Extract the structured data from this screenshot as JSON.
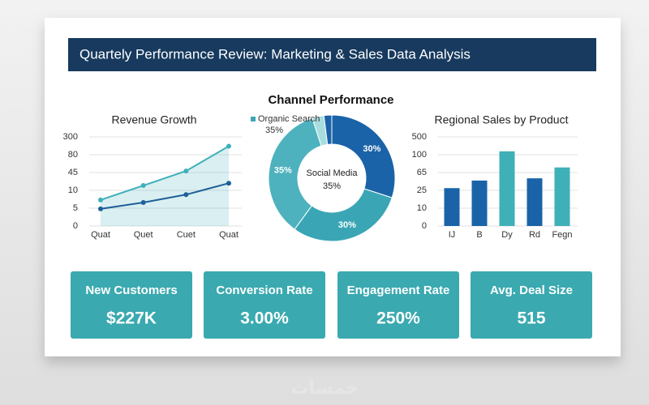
{
  "header": {
    "title": "Quartely Performance Review: Marketing & Sales Data Analysis"
  },
  "chart_data": [
    {
      "type": "line",
      "title": "Revenue Growth",
      "categories": [
        "Quat",
        "Quet",
        "Cuet",
        "Quat"
      ],
      "series": [
        {
          "color": "#3fb0b8",
          "values": [
            7.3,
            19.5,
            48,
            185
          ]
        },
        {
          "color": "#1f5f99",
          "values": [
            4.8,
            6.6,
            8.8,
            24
          ]
        }
      ],
      "ylim": [
        0,
        300
      ],
      "yticks": [
        0,
        5,
        10,
        45,
        80,
        300
      ],
      "grid": true
    },
    {
      "type": "donut",
      "title": "Channel Performance",
      "values": [
        30,
        30,
        35,
        3,
        2
      ],
      "value_labels": [
        "30%",
        "30%",
        "35%",
        null,
        null
      ],
      "colors": [
        "#1a63a8",
        "#3aa6b5",
        "#4eb2be",
        "#a8dde0",
        "#1a63a8"
      ],
      "legend": {
        "label": "Organic Search",
        "value_label": "35%",
        "color": "#3aa6b5"
      },
      "center": {
        "label": "Social Media",
        "value_label": "35%"
      }
    },
    {
      "type": "bar",
      "title": "Regional Sales by Product",
      "categories": [
        "IJ",
        "B",
        "Dy",
        "Rd",
        "Fegn"
      ],
      "values": [
        30,
        47,
        176,
        52,
        75
      ],
      "colors": [
        "#1a63a8",
        "#1a63a8",
        "#3fb0b8",
        "#1a63a8",
        "#3fb0b8"
      ],
      "ylim": [
        0,
        500
      ],
      "yticks": [
        0,
        10,
        25,
        65,
        100,
        500
      ],
      "grid": true
    }
  ],
  "kpis": [
    {
      "label": "New Customers",
      "value": "$227K"
    },
    {
      "label": "Conversion Rate",
      "value": "3.00%"
    },
    {
      "label": "Engagement Rate",
      "value": "250%"
    },
    {
      "label": "Avg. Deal Size",
      "value": "515"
    }
  ],
  "watermark": "خمسات"
}
